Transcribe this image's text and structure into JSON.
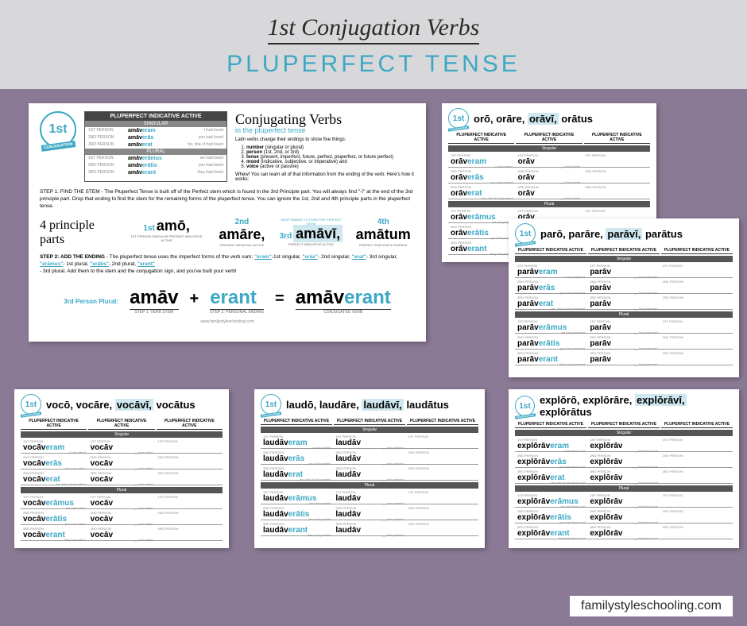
{
  "header": {
    "main": "1st Conjugation Verbs",
    "sub": "PLUPERFECT TENSE"
  },
  "footer_url": "familystyleschooling.com",
  "badge": {
    "num": "1st",
    "label": "CONJUGATION"
  },
  "main_card": {
    "table_title": "PLUPERFECT INDICATIVE ACTIVE",
    "singular": "SINGULAR",
    "plural": "PLURAL",
    "rows_sg": [
      {
        "p": "1ST PERSON",
        "stem": "amāv",
        "end": "eram",
        "gloss": "I had loved"
      },
      {
        "p": "2ND PERSON",
        "stem": "amāv",
        "end": "erās",
        "gloss": "you had loved"
      },
      {
        "p": "3RD PERSON",
        "stem": "amāv",
        "end": "erat",
        "gloss": "he, she, it had loved"
      }
    ],
    "rows_pl": [
      {
        "p": "1ST PERSON",
        "stem": "amāv",
        "end": "erāmus",
        "gloss": "we had loved"
      },
      {
        "p": "2ND PERSON",
        "stem": "amāv",
        "end": "erātis",
        "gloss": "you had loved"
      },
      {
        "p": "3RD PERSON",
        "stem": "amāv",
        "end": "erant",
        "gloss": "they had loved"
      }
    ],
    "right_title": "Conjugating Verbs",
    "right_sub": "in the pluperfect tense",
    "intro": "Latin verbs change their endings to show five things:",
    "list": [
      "number (singular or plural)",
      "person (1st, 2nd, or 3rd)",
      "tense (present, imperfect, future, perfect, pluperfect, or future perfect)",
      "mood (indicative, subjective, or imperative) and",
      "voice (active or passive)"
    ],
    "whew": "Whew! You can learn all of that information from the ending of the verb. Here's how it works:",
    "step1": "STEP 1: FIND THE STEM - The Pluperfect Tense is built off of the Perfect stem which is found in the 3rd Principle part. You will always find \"-ī\" at the end of the 3rd principle part. Drop that ending to find the stem for the remaining forms of the pluperfect tense. You can ignore the 1st, 2nd and 4th principle parts in the pluperfect tense.",
    "parts_label": "4 principle parts",
    "parts": [
      {
        "ord": "1st",
        "w": "amō,",
        "sub": "1ST PERSON SINGULAR PRESENT INDICATIVE ACTIVE"
      },
      {
        "ord": "2nd",
        "w": "amāre,",
        "sub": "PRESENT INFINITIVE ACTIVE"
      },
      {
        "ord": "3rd",
        "w": "amāvī,",
        "sub": "PERFECT INDICATIVE ACTIVE",
        "hl": true,
        "tag": "DROP ENDING TO FORM THE PERFECT STEM"
      },
      {
        "ord": "4th",
        "w": "amātum",
        "sub": "PERFECT PARTICIPLE PASSIVE"
      }
    ],
    "step2_a": "STEP 2: ADD THE ENDING - The pluperfect tense uses the imperfect forms of the verb sum: ",
    "step2_endings": [
      {
        "e": "\"eram\"",
        "d": "-1st singular,"
      },
      {
        "e": "\"erās\"",
        "d": "- 2nd singular,"
      },
      {
        "e": "\"erat\"",
        "d": "- 3rd singular,"
      },
      {
        "e": "\"erāmus\"",
        "d": "- 1st plural,"
      },
      {
        "e": "\"erātis\"",
        "d": "- 2nd plural,"
      },
      {
        "e": "\"erant\"",
        "d": ""
      }
    ],
    "step2_b": "- 3rd plural. Add them to the stem and the conjugation sign, and you've built your verb!",
    "formula_label": "3rd Person Plural:",
    "formula": {
      "a": "amāv",
      "a_sub": "STEP 1: VERB STEM",
      "b": "erant",
      "b_sub": "STEP 2: PERSONAL ENDING",
      "c_stem": "amāv",
      "c_end": "erant",
      "c_sub": "CONJUGATED VERB"
    },
    "url": "www.familystyleschooling.com"
  },
  "ws_header3": [
    "PLUPERFECT INDICATIVE ACTIVE",
    "PLUPERFECT INDICATIVE ACTIVE",
    "PLUPERFECT INDICATIVE ACTIVE"
  ],
  "ws_singular": "Singular",
  "ws_plural": "Plural",
  "persons": [
    "1ST PERSON",
    "2ND PERSON",
    "3RD PERSON"
  ],
  "endings_sg": [
    "eram",
    "erās",
    "erat"
  ],
  "endings_pl": [
    "erāmus",
    "erātis",
    "erant"
  ],
  "glosses_sg": [
    "I had",
    "you had",
    "he, she, it had"
  ],
  "glosses_pl": [
    "we had",
    "you had",
    "they had"
  ],
  "worksheets": {
    "oro": {
      "pp": [
        "orō,",
        "orāre,",
        "orāvī,",
        "orātus"
      ],
      "stem": "orāv",
      "g": "prayed"
    },
    "paro": {
      "pp": [
        "parō,",
        "parāre,",
        "parāvī,",
        "parātus"
      ],
      "stem": "parāv",
      "g": "prepared"
    },
    "voco": {
      "pp": [
        "vocō,",
        "vocāre,",
        "vocāvī,",
        "vocātus"
      ],
      "stem": "vocāv",
      "g": "called"
    },
    "laudo": {
      "pp": [
        "laudō,",
        "laudāre,",
        "laudāvī,",
        "laudātus"
      ],
      "stem": "laudāv",
      "g": "praised"
    },
    "exploro": {
      "pp": [
        "explōrō,",
        "explōrāre,",
        "explōrāvī,",
        "explōrātus"
      ],
      "stem": "explōrāv",
      "g": "found out"
    }
  }
}
